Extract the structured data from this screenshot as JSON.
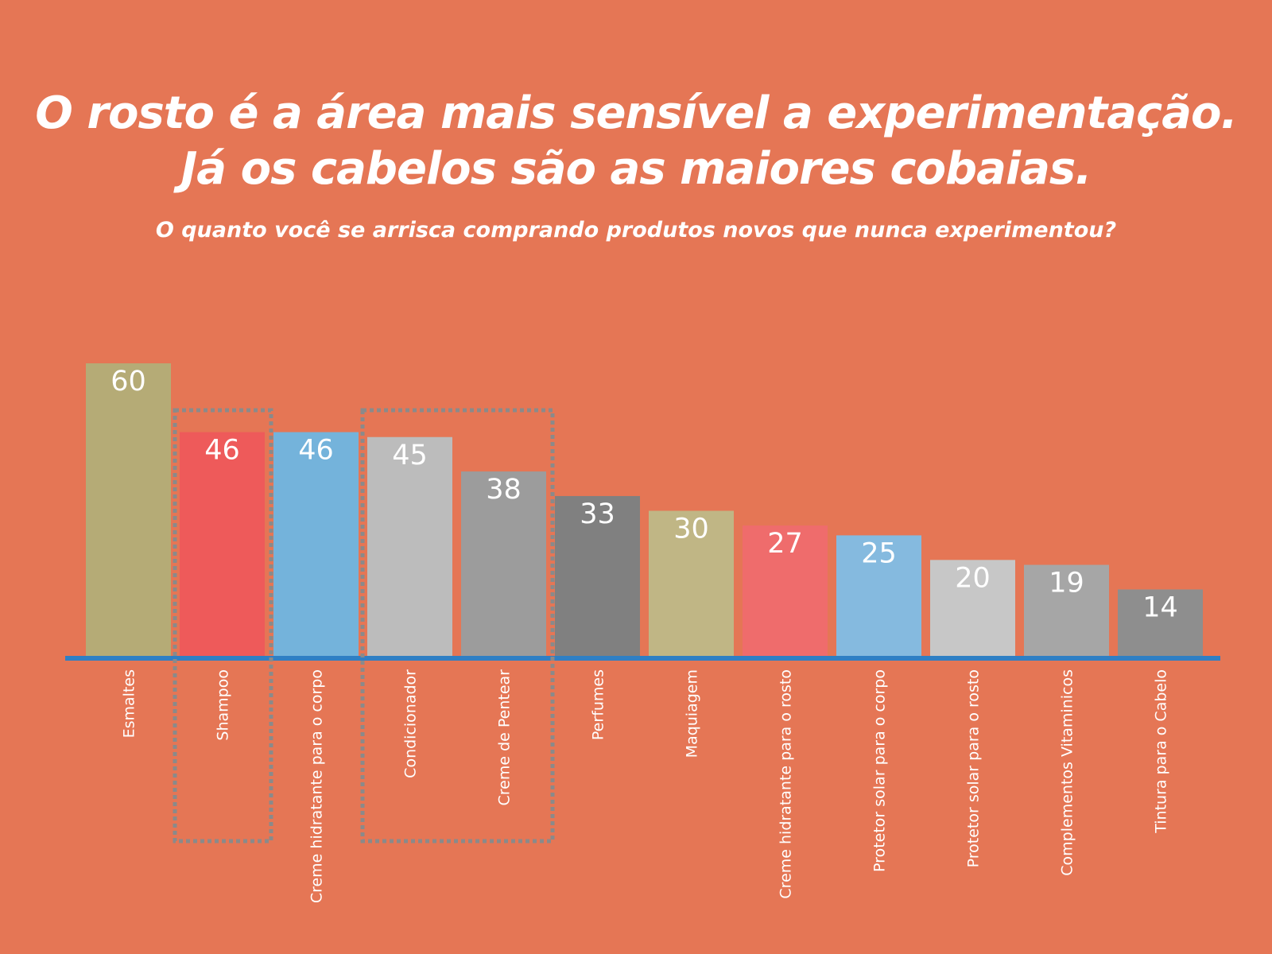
{
  "header": {
    "title_line1": "O rosto é a área mais sensível a experimentação.",
    "title_line2": "Já os cabelos são as maiores cobaias.",
    "subtitle": "O quanto você se arrisca comprando produtos novos que nunca experimentou?"
  },
  "chart_data": {
    "type": "bar",
    "title": "O rosto é a área mais sensível a experimentação. Já os cabelos são as maiores cobaias.",
    "subtitle": "O quanto você se arrisca comprando produtos novos que nunca experimentou?",
    "xlabel": "",
    "ylabel": "",
    "ylim": [
      0,
      60
    ],
    "grid": false,
    "categories": [
      "Esmaltes",
      "Shampoo",
      "Creme hidratante para o corpo",
      "Condicionador",
      "Creme de Pentear",
      "Perfumes",
      "Maquiagem",
      "Creme hidratante para o rosto",
      "Protetor solar para o corpo",
      "Protetor solar para o rosto",
      "Complementos Vitaminicos",
      "Tintura para o Cabelo"
    ],
    "values": [
      60,
      46,
      46,
      45,
      38,
      33,
      30,
      27,
      25,
      20,
      19,
      14
    ],
    "bar_colors": [
      "#B5AB76",
      "#EE5A5A",
      "#74B3DB",
      "#BCBCBC",
      "#9C9C9C",
      "#808080",
      "#C0B685",
      "#EF6C6C",
      "#85BADF",
      "#C7C7C7",
      "#A6A6A6",
      "#8E8E8E"
    ],
    "baseline_color": "#2F7FC4",
    "highlight_groups": [
      [
        "Shampoo"
      ],
      [
        "Condicionador",
        "Creme de Pentear"
      ]
    ],
    "highlight_color": "#8A8A8A"
  }
}
